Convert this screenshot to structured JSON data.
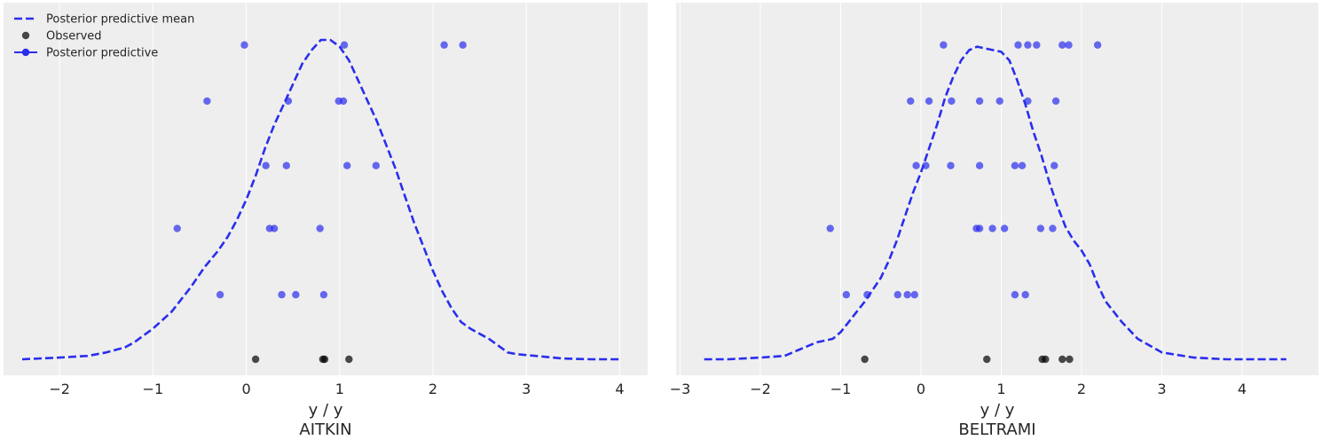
{
  "colors": {
    "panel_bg": "#eeeeee",
    "grid": "#ffffff",
    "mean_line": "#2a2eec",
    "predictive": "#2a2eec",
    "observed": "#000000",
    "text": "#262626"
  },
  "legend": {
    "placement": "top-left",
    "items": [
      {
        "label": "Posterior predictive mean",
        "kind": "dashed-line"
      },
      {
        "label": "Observed",
        "kind": "observed-marker"
      },
      {
        "label": "Posterior predictive",
        "kind": "predictive-marker"
      }
    ]
  },
  "chart_data": [
    {
      "type": "scatter",
      "xlabel": "y / y",
      "title": "AITKIN",
      "xlim": [
        -2.6,
        4.3
      ],
      "ylim": [
        0,
        1
      ],
      "xticks": [
        -2,
        -1,
        0,
        1,
        2,
        3,
        4
      ],
      "xtick_labels": [
        "−2",
        "−1",
        "0",
        "1",
        "2",
        "3",
        "4"
      ],
      "grid": true,
      "mean_curve": {
        "x": [
          -2.4,
          -2.0,
          -1.7,
          -1.5,
          -1.3,
          -1.2,
          -1.0,
          -0.8,
          -0.6,
          -0.45,
          -0.3,
          -0.2,
          -0.1,
          0.0,
          0.1,
          0.2,
          0.3,
          0.4,
          0.5,
          0.6,
          0.7,
          0.8,
          0.9,
          1.0,
          1.1,
          1.2,
          1.3,
          1.4,
          1.5,
          1.6,
          1.7,
          1.8,
          1.9,
          2.0,
          2.1,
          2.2,
          2.3,
          2.4,
          2.6,
          2.8,
          2.9,
          3.1,
          3.4,
          3.7,
          4.0
        ],
        "y": [
          0.0,
          0.005,
          0.01,
          0.02,
          0.035,
          0.05,
          0.09,
          0.14,
          0.21,
          0.27,
          0.32,
          0.36,
          0.41,
          0.47,
          0.54,
          0.62,
          0.69,
          0.75,
          0.81,
          0.87,
          0.91,
          0.94,
          0.94,
          0.92,
          0.88,
          0.82,
          0.76,
          0.7,
          0.63,
          0.56,
          0.48,
          0.4,
          0.33,
          0.26,
          0.2,
          0.15,
          0.11,
          0.09,
          0.06,
          0.02,
          0.015,
          0.01,
          0.002,
          0.0,
          0.0
        ]
      },
      "observed": [
        {
          "x": 0.1,
          "y": 0.0
        },
        {
          "x": 0.82,
          "y": 0.0
        },
        {
          "x": 0.84,
          "y": 0.0
        },
        {
          "x": 1.1,
          "y": 0.0
        }
      ],
      "predictive": [
        {
          "x": -0.02,
          "y": 0.925
        },
        {
          "x": 1.05,
          "y": 0.925
        },
        {
          "x": 2.12,
          "y": 0.925
        },
        {
          "x": 2.32,
          "y": 0.925
        },
        {
          "x": -0.42,
          "y": 0.76
        },
        {
          "x": 0.45,
          "y": 0.76
        },
        {
          "x": 0.99,
          "y": 0.76
        },
        {
          "x": 1.04,
          "y": 0.76
        },
        {
          "x": 0.21,
          "y": 0.57
        },
        {
          "x": 0.43,
          "y": 0.57
        },
        {
          "x": 1.08,
          "y": 0.57
        },
        {
          "x": 1.39,
          "y": 0.57
        },
        {
          "x": -0.74,
          "y": 0.385
        },
        {
          "x": 0.25,
          "y": 0.385
        },
        {
          "x": 0.3,
          "y": 0.385
        },
        {
          "x": 0.79,
          "y": 0.385
        },
        {
          "x": -0.28,
          "y": 0.19
        },
        {
          "x": 0.38,
          "y": 0.19
        },
        {
          "x": 0.53,
          "y": 0.19
        },
        {
          "x": 0.83,
          "y": 0.19
        }
      ]
    },
    {
      "type": "scatter",
      "xlabel": "y / y",
      "title": "BELTRAMI",
      "xlim": [
        -3.05,
        4.95
      ],
      "ylim": [
        0,
        1
      ],
      "xticks": [
        -3,
        -2,
        -1,
        0,
        1,
        2,
        3,
        4
      ],
      "xtick_labels": [
        "−3",
        "−2",
        "−1",
        "0",
        "1",
        "2",
        "3",
        "4"
      ],
      "grid": true,
      "mean_curve": {
        "x": [
          -2.7,
          -2.4,
          -2.0,
          -1.7,
          -1.5,
          -1.3,
          -1.1,
          -1.0,
          -0.9,
          -0.7,
          -0.5,
          -0.4,
          -0.3,
          -0.2,
          -0.1,
          0.0,
          0.1,
          0.2,
          0.3,
          0.4,
          0.5,
          0.6,
          0.7,
          0.8,
          0.9,
          1.0,
          1.1,
          1.2,
          1.3,
          1.4,
          1.5,
          1.6,
          1.7,
          1.8,
          1.9,
          2.0,
          2.1,
          2.2,
          2.3,
          2.5,
          2.7,
          3.0,
          3.4,
          3.8,
          4.2,
          4.55
        ],
        "y": [
          0.0,
          0.0,
          0.005,
          0.01,
          0.03,
          0.05,
          0.06,
          0.08,
          0.11,
          0.17,
          0.24,
          0.29,
          0.35,
          0.42,
          0.49,
          0.55,
          0.62,
          0.69,
          0.77,
          0.83,
          0.88,
          0.91,
          0.92,
          0.915,
          0.91,
          0.905,
          0.88,
          0.82,
          0.75,
          0.67,
          0.6,
          0.52,
          0.45,
          0.39,
          0.35,
          0.32,
          0.28,
          0.22,
          0.17,
          0.11,
          0.06,
          0.02,
          0.005,
          0.0,
          0.0,
          0.0
        ]
      },
      "observed": [
        {
          "x": -0.7,
          "y": 0.0
        },
        {
          "x": 0.82,
          "y": 0.0
        },
        {
          "x": 1.51,
          "y": 0.0
        },
        {
          "x": 1.55,
          "y": 0.0
        },
        {
          "x": 1.76,
          "y": 0.0
        },
        {
          "x": 1.85,
          "y": 0.0
        }
      ],
      "predictive": [
        {
          "x": 0.28,
          "y": 0.925
        },
        {
          "x": 1.21,
          "y": 0.925
        },
        {
          "x": 1.33,
          "y": 0.925
        },
        {
          "x": 1.44,
          "y": 0.925
        },
        {
          "x": 1.76,
          "y": 0.925
        },
        {
          "x": 1.84,
          "y": 0.925
        },
        {
          "x": 2.2,
          "y": 0.925
        },
        {
          "x": -0.13,
          "y": 0.76
        },
        {
          "x": 0.1,
          "y": 0.76
        },
        {
          "x": 0.38,
          "y": 0.76
        },
        {
          "x": 0.73,
          "y": 0.76
        },
        {
          "x": 0.98,
          "y": 0.76
        },
        {
          "x": 1.33,
          "y": 0.76
        },
        {
          "x": 1.68,
          "y": 0.76
        },
        {
          "x": -0.06,
          "y": 0.57
        },
        {
          "x": 0.06,
          "y": 0.57
        },
        {
          "x": 0.37,
          "y": 0.57
        },
        {
          "x": 0.73,
          "y": 0.57
        },
        {
          "x": 1.17,
          "y": 0.57
        },
        {
          "x": 1.26,
          "y": 0.57
        },
        {
          "x": 1.66,
          "y": 0.57
        },
        {
          "x": -1.13,
          "y": 0.385
        },
        {
          "x": 0.69,
          "y": 0.385
        },
        {
          "x": 0.73,
          "y": 0.385
        },
        {
          "x": 0.89,
          "y": 0.385
        },
        {
          "x": 1.04,
          "y": 0.385
        },
        {
          "x": 1.49,
          "y": 0.385
        },
        {
          "x": 1.64,
          "y": 0.385
        },
        {
          "x": -0.93,
          "y": 0.19
        },
        {
          "x": -0.67,
          "y": 0.19
        },
        {
          "x": -0.29,
          "y": 0.19
        },
        {
          "x": -0.17,
          "y": 0.19
        },
        {
          "x": -0.08,
          "y": 0.19
        },
        {
          "x": 1.17,
          "y": 0.19
        },
        {
          "x": 1.3,
          "y": 0.19
        }
      ]
    }
  ]
}
